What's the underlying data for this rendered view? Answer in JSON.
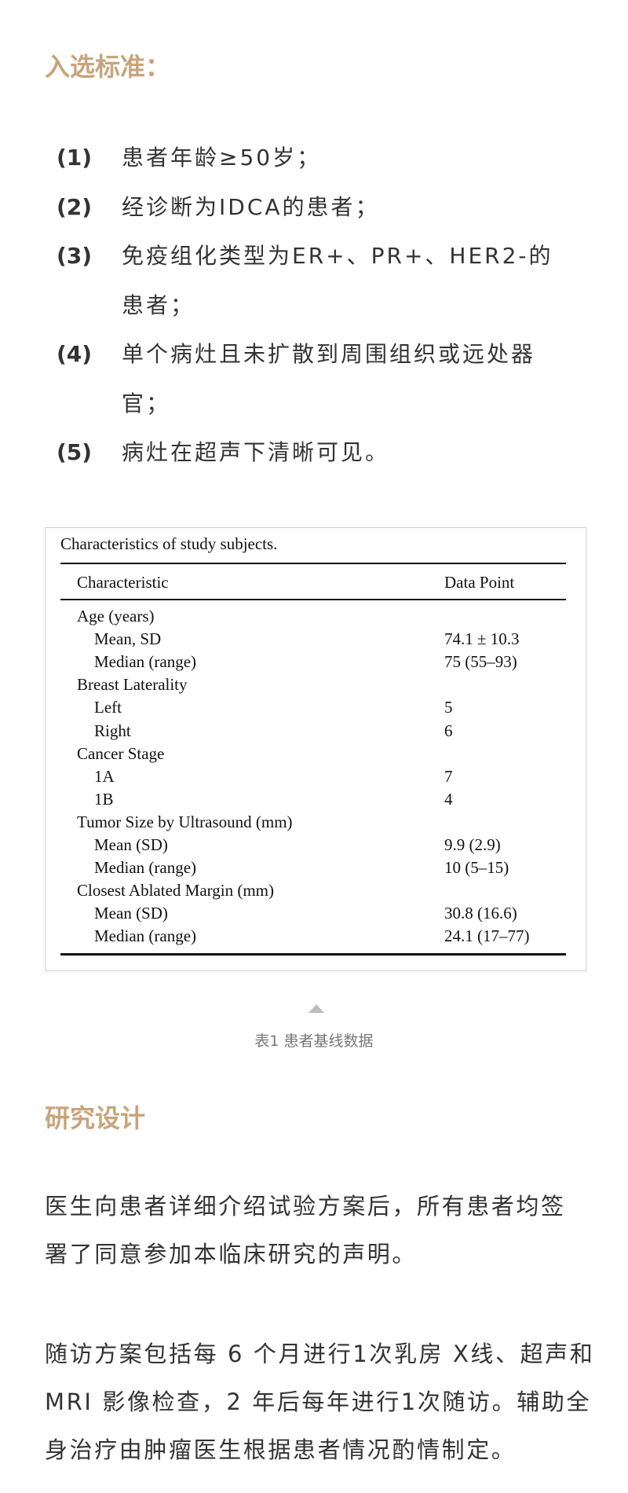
{
  "section1": {
    "heading": "入选标准：",
    "items": [
      {
        "num": "(1)",
        "lines": [
          "患者年龄≥50岁；"
        ]
      },
      {
        "num": "(2)",
        "lines": [
          "经诊断为IDCA的患者；"
        ]
      },
      {
        "num": "(3)",
        "lines": [
          "免疫组化类型为ER+、PR+、HER2-的",
          "患者；"
        ]
      },
      {
        "num": "(4)",
        "lines": [
          "单个病灶且未扩散到周围组织或远处器",
          "官；"
        ]
      },
      {
        "num": "(5)",
        "lines": [
          "病灶在超声下清晰可见。"
        ]
      }
    ]
  },
  "table": {
    "caption": "Characteristics of study subjects.",
    "headers": [
      "Characteristic",
      "Data Point"
    ],
    "rows": [
      {
        "label": "Age (years)",
        "value": "",
        "indent": false
      },
      {
        "label": "Mean, SD",
        "value": "74.1 ± 10.3",
        "indent": true
      },
      {
        "label": "Median (range)",
        "value": "75 (55–93)",
        "indent": true
      },
      {
        "label": "Breast Laterality",
        "value": "",
        "indent": false
      },
      {
        "label": "Left",
        "value": "5",
        "indent": true
      },
      {
        "label": "Right",
        "value": "6",
        "indent": true
      },
      {
        "label": "Cancer Stage",
        "value": "",
        "indent": false
      },
      {
        "label": "1A",
        "value": "7",
        "indent": true
      },
      {
        "label": "1B",
        "value": "4",
        "indent": true
      },
      {
        "label": "Tumor Size by Ultrasound (mm)",
        "value": "",
        "indent": false
      },
      {
        "label": "Mean (SD)",
        "value": "9.9 (2.9)",
        "indent": true
      },
      {
        "label": "Median (range)",
        "value": "10 (5–15)",
        "indent": true
      },
      {
        "label": "Closest Ablated Margin (mm)",
        "value": "",
        "indent": false
      },
      {
        "label": "Mean (SD)",
        "value": "30.8 (16.6)",
        "indent": true
      },
      {
        "label": "Median (range)",
        "value": "24.1 (17–77)",
        "indent": true
      }
    ],
    "figure_caption": "表1  患者基线数据"
  },
  "section2": {
    "heading": "研究设计",
    "paragraphs": [
      [
        "医生向患者详细介绍试验方案后，所有患者均签",
        "署了同意参加本临床研究的声明。"
      ],
      [
        "随访方案包括每 6 个月进行1次乳房 X线、超声和",
        "MRI 影像检查，2 年后每年进行1次随访。辅助全",
        "身治疗由肿瘤医生根据患者情况酌情制定。"
      ]
    ]
  },
  "colors": {
    "heading": "#c8a47c",
    "text": "#333333",
    "caption": "#777777"
  }
}
